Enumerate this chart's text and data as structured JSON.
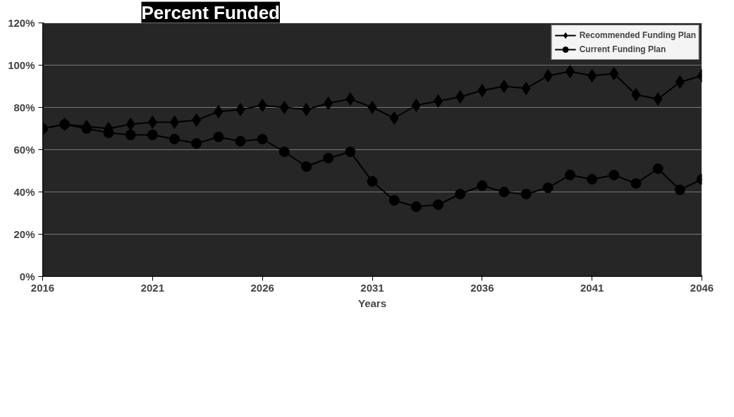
{
  "chart_data": {
    "type": "line",
    "title": "Percent Funded",
    "xlabel": "Years",
    "x": [
      2016,
      2017,
      2018,
      2019,
      2020,
      2021,
      2022,
      2023,
      2024,
      2025,
      2026,
      2027,
      2028,
      2029,
      2030,
      2031,
      2032,
      2033,
      2034,
      2035,
      2036,
      2037,
      2038,
      2039,
      2040,
      2041,
      2042,
      2043,
      2044,
      2045,
      2046
    ],
    "series": [
      {
        "name": "Recommended Funding Plan",
        "color": "#000000",
        "marker": "diamond",
        "values": [
          70,
          72,
          71,
          70,
          72,
          73,
          73,
          74,
          78,
          79,
          81,
          80,
          79,
          82,
          84,
          80,
          75,
          81,
          83,
          85,
          88,
          90,
          89,
          95,
          97,
          95,
          96,
          86,
          84,
          92,
          95
        ]
      },
      {
        "name": "Current Funding Plan",
        "color": "#000000",
        "marker": "circle",
        "values": [
          70,
          72,
          70,
          68,
          67,
          67,
          65,
          63,
          66,
          64,
          65,
          59,
          52,
          56,
          59,
          45,
          36,
          33,
          34,
          39,
          43,
          40,
          39,
          42,
          48,
          46,
          48,
          44,
          51,
          41,
          46
        ]
      }
    ],
    "xlim": [
      2016,
      2046
    ],
    "xticks": [
      2016,
      2021,
      2026,
      2031,
      2036,
      2041,
      2046
    ],
    "ylim": [
      0,
      120
    ],
    "yticks": [
      {
        "value": 0,
        "label": "0%"
      },
      {
        "value": 20,
        "label": "20%"
      },
      {
        "value": 40,
        "label": "40%"
      },
      {
        "value": 60,
        "label": "60%"
      },
      {
        "value": 80,
        "label": "80%"
      },
      {
        "value": 100,
        "label": "100%"
      },
      {
        "value": 120,
        "label": "120%"
      }
    ],
    "grid": "y",
    "legend": "top right",
    "line_style": "solid"
  }
}
